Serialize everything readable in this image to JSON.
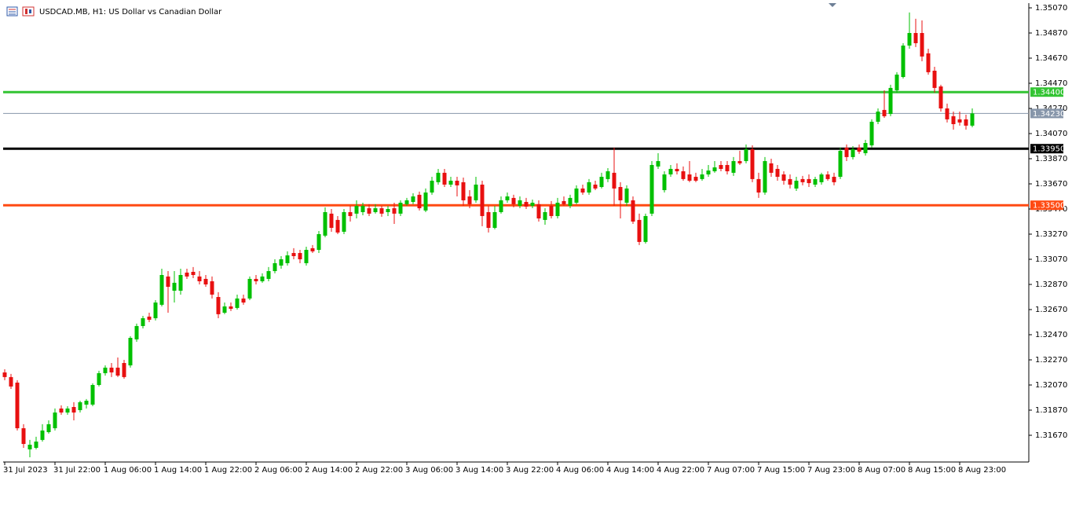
{
  "chart_data": {
    "type": "candlestick",
    "title": "USDCAD.MB, H1:  US Dollar vs Canadian Dollar",
    "categories": [
      "31 Jul 2023",
      null,
      null,
      null,
      null,
      null,
      null,
      null,
      "31 Jul 22:00",
      null,
      null,
      null,
      null,
      null,
      null,
      null,
      "1 Aug 06:00",
      null,
      null,
      null,
      null,
      null,
      null,
      null,
      "1 Aug 14:00",
      null,
      null,
      null,
      null,
      null,
      null,
      null,
      "1 Aug 22:00",
      null,
      null,
      null,
      null,
      null,
      null,
      null,
      "2 Aug 06:00",
      null,
      null,
      null,
      null,
      null,
      null,
      null,
      "2 Aug 14:00",
      null,
      null,
      null,
      null,
      null,
      null,
      null,
      "2 Aug 22:00",
      null,
      null,
      null,
      null,
      null,
      null,
      null,
      "3 Aug 06:00",
      null,
      null,
      null,
      null,
      null,
      null,
      null,
      "3 Aug 14:00",
      null,
      null,
      null,
      null,
      null,
      null,
      null,
      "3 Aug 22:00",
      null,
      null,
      null,
      null,
      null,
      null,
      null,
      "4 Aug 06:00",
      null,
      null,
      null,
      null,
      null,
      null,
      null,
      "4 Aug 14:00",
      null,
      null,
      null,
      null,
      null,
      null,
      null,
      "4 Aug 22:00",
      null,
      null,
      null,
      null,
      null,
      null,
      null,
      "7 Aug 07:00",
      null,
      null,
      null,
      null,
      null,
      null,
      null,
      "7 Aug 15:00",
      null,
      null,
      null,
      null,
      null,
      null,
      null,
      "7 Aug 23:00",
      null,
      null,
      null,
      null,
      null,
      null,
      null,
      "8 Aug 07:00",
      null,
      null,
      null,
      null,
      null,
      null,
      null,
      "8 Aug 15:00",
      null,
      null,
      null,
      null,
      null,
      null,
      null,
      "8 Aug 23:00",
      null,
      null
    ],
    "open": [
      1.3217,
      1.32133,
      1.32089,
      1.31726,
      1.31558,
      1.3157,
      1.31633,
      1.31695,
      1.31726,
      1.31883,
      1.31851,
      1.31895,
      1.3187,
      1.31914,
      1.31914,
      1.3207,
      1.32164,
      1.32208,
      1.32208,
      1.32245,
      1.32226,
      1.32433,
      1.32539,
      1.32614,
      1.32601,
      1.32708,
      1.32933,
      1.3282,
      1.3282,
      1.32964,
      1.3297,
      1.32933,
      1.32914,
      1.32895,
      1.3277,
      1.32645,
      1.32695,
      1.32683,
      1.32758,
      1.32758,
      1.32914,
      1.32895,
      1.32914,
      1.32976,
      1.3302,
      1.33039,
      1.3312,
      1.3312,
      1.33039,
      1.33158,
      1.33145,
      1.33258,
      1.33433,
      1.33383,
      1.33289,
      1.33445,
      1.33433,
      1.33445,
      1.33476,
      1.33445,
      1.33476,
      1.33445,
      1.33476,
      1.33433,
      1.33508,
      1.33526,
      1.33583,
      1.33458,
      1.33601,
      1.33683,
      1.33758,
      1.33664,
      1.33695,
      1.33683,
      1.3357,
      1.33539,
      1.33664,
      1.33445,
      1.3332,
      1.33445,
      1.33539,
      1.33558,
      1.33495,
      1.33526,
      1.33495,
      1.33508,
      1.33383,
      1.33495,
      1.33414,
      1.33533,
      1.33495,
      1.3352,
      1.33633,
      1.33601,
      1.33664,
      1.33645,
      1.33708,
      1.33758,
      1.33645,
      1.3352,
      1.33539,
      1.33383,
      1.33208,
      1.33433,
      1.33808,
      1.3362,
      1.33745,
      1.33789,
      1.3377,
      1.33745,
      1.33726,
      1.33708,
      1.33745,
      1.3377,
      1.3382,
      1.3382,
      1.33758,
      1.33851,
      1.33851,
      1.33945,
      1.33708,
      1.33601,
      1.33833,
      1.33789,
      1.33745,
      1.33708,
      1.33633,
      1.33708,
      1.33708,
      1.33664,
      1.33683,
      1.33745,
      1.33726,
      1.33726,
      1.33958,
      1.33883,
      1.33958,
      1.33914,
      1.33976,
      1.34164,
      1.34258,
      1.34226,
      1.34414,
      1.3452,
      1.3477,
      1.3487,
      1.3487,
      1.34708,
      1.3457,
      1.34445,
      1.3427,
      1.34208,
      1.34183,
      1.34183,
      1.34133
    ],
    "high": [
      1.32195,
      1.32158,
      1.32108,
      1.31758,
      1.31633,
      1.31658,
      1.31758,
      1.31789,
      1.31883,
      1.31908,
      1.31901,
      1.31933,
      1.31945,
      1.31958,
      1.32083,
      1.32183,
      1.32226,
      1.32245,
      1.32289,
      1.3227,
      1.32458,
      1.32558,
      1.3262,
      1.32645,
      1.32745,
      1.32995,
      1.32976,
      1.32976,
      1.32995,
      1.32995,
      1.33008,
      1.32976,
      1.32945,
      1.32933,
      1.32808,
      1.32726,
      1.32726,
      1.32789,
      1.32789,
      1.32933,
      1.32945,
      1.32958,
      1.33008,
      1.3307,
      1.33095,
      1.33133,
      1.33158,
      1.33145,
      1.3317,
      1.33183,
      1.33295,
      1.33483,
      1.3347,
      1.33414,
      1.3347,
      1.33495,
      1.33539,
      1.3352,
      1.33508,
      1.33508,
      1.33495,
      1.33495,
      1.3352,
      1.33539,
      1.33558,
      1.33595,
      1.33608,
      1.33633,
      1.33726,
      1.33789,
      1.33789,
      1.33726,
      1.33726,
      1.3372,
      1.3362,
      1.33726,
      1.33695,
      1.33495,
      1.33495,
      1.3357,
      1.33601,
      1.33583,
      1.3357,
      1.33558,
      1.33545,
      1.33539,
      1.33476,
      1.33533,
      1.33558,
      1.3357,
      1.33583,
      1.33658,
      1.33664,
      1.33708,
      1.33695,
      1.33758,
      1.33795,
      1.33958,
      1.33683,
      1.33658,
      1.3357,
      1.33433,
      1.33433,
      1.33851,
      1.33914,
      1.3377,
      1.3382,
      1.33833,
      1.33808,
      1.33851,
      1.33758,
      1.33789,
      1.3382,
      1.33851,
      1.33851,
      1.33851,
      1.33883,
      1.33933,
      1.33983,
      1.33976,
      1.33758,
      1.33883,
      1.3387,
      1.3382,
      1.3377,
      1.33745,
      1.33726,
      1.33733,
      1.33745,
      1.33726,
      1.33758,
      1.3377,
      1.33758,
      1.33958,
      1.33983,
      1.3397,
      1.33983,
      1.3402,
      1.34183,
      1.3427,
      1.34414,
      1.34458,
      1.34558,
      1.34789,
      1.35033,
      1.34983,
      1.3497,
      1.34745,
      1.34601,
      1.34458,
      1.34308,
      1.34245,
      1.34245,
      1.3422,
      1.3427
    ],
    "low": [
      1.32108,
      1.32039,
      1.31708,
      1.3157,
      1.31495,
      1.31558,
      1.3162,
      1.31683,
      1.31708,
      1.31833,
      1.31833,
      1.31789,
      1.31851,
      1.31883,
      1.31901,
      1.32058,
      1.32145,
      1.32133,
      1.32133,
      1.3212,
      1.32208,
      1.32414,
      1.3252,
      1.3257,
      1.32583,
      1.32695,
      1.32645,
      1.32726,
      1.32789,
      1.32914,
      1.3292,
      1.3287,
      1.32851,
      1.32758,
      1.32601,
      1.32633,
      1.32658,
      1.3267,
      1.32708,
      1.32745,
      1.3287,
      1.32883,
      1.32895,
      1.32958,
      1.32995,
      1.3302,
      1.3307,
      1.33039,
      1.3302,
      1.3312,
      1.3312,
      1.33245,
      1.33289,
      1.3327,
      1.3327,
      1.3337,
      1.33395,
      1.3342,
      1.33414,
      1.33433,
      1.33408,
      1.33414,
      1.33351,
      1.33414,
      1.33495,
      1.33508,
      1.33458,
      1.33445,
      1.33583,
      1.33664,
      1.33645,
      1.33645,
      1.3357,
      1.33495,
      1.33476,
      1.3352,
      1.33333,
      1.33283,
      1.33308,
      1.33433,
      1.3352,
      1.33483,
      1.33476,
      1.3347,
      1.33476,
      1.3337,
      1.33345,
      1.33395,
      1.33395,
      1.33495,
      1.33476,
      1.33508,
      1.33583,
      1.33583,
      1.3362,
      1.33633,
      1.33683,
      1.33495,
      1.33395,
      1.33495,
      1.33351,
      1.33183,
      1.33195,
      1.33414,
      1.33789,
      1.33601,
      1.33726,
      1.33745,
      1.33695,
      1.33683,
      1.33683,
      1.33695,
      1.33726,
      1.33758,
      1.3377,
      1.33745,
      1.33733,
      1.3382,
      1.33833,
      1.33683,
      1.33558,
      1.33583,
      1.33726,
      1.33695,
      1.33664,
      1.33633,
      1.33614,
      1.33658,
      1.33645,
      1.33645,
      1.33664,
      1.33695,
      1.33658,
      1.33708,
      1.33851,
      1.33864,
      1.33908,
      1.33895,
      1.33958,
      1.34145,
      1.34195,
      1.34208,
      1.34395,
      1.34508,
      1.34745,
      1.34758,
      1.34645,
      1.34539,
      1.34395,
      1.34245,
      1.34158,
      1.34101,
      1.34133,
      1.34101,
      1.3412
    ],
    "close": [
      1.32133,
      1.32058,
      1.31726,
      1.31601,
      1.31595,
      1.3162,
      1.31708,
      1.31758,
      1.31851,
      1.31851,
      1.31883,
      1.31851,
      1.31933,
      1.31945,
      1.3207,
      1.32164,
      1.32208,
      1.3217,
      1.32145,
      1.32133,
      1.32445,
      1.32539,
      1.32601,
      1.32589,
      1.32726,
      1.32945,
      1.32851,
      1.32883,
      1.32945,
      1.32933,
      1.32945,
      1.32895,
      1.3287,
      1.32789,
      1.32633,
      1.32695,
      1.32676,
      1.32758,
      1.32726,
      1.32914,
      1.32895,
      1.32933,
      1.32976,
      1.33039,
      1.3307,
      1.33101,
      1.33095,
      1.3307,
      1.33145,
      1.33133,
      1.3327,
      1.33445,
      1.3332,
      1.33283,
      1.33445,
      1.33414,
      1.33495,
      1.33495,
      1.33433,
      1.33476,
      1.33433,
      1.3347,
      1.33433,
      1.3352,
      1.33539,
      1.3357,
      1.33476,
      1.33601,
      1.33695,
      1.33758,
      1.33664,
      1.33695,
      1.33658,
      1.33539,
      1.33508,
      1.33664,
      1.33414,
      1.3332,
      1.33445,
      1.33539,
      1.3357,
      1.33508,
      1.33539,
      1.33489,
      1.3352,
      1.33395,
      1.33445,
      1.33414,
      1.3352,
      1.33508,
      1.33558,
      1.33633,
      1.33601,
      1.33683,
      1.33633,
      1.33726,
      1.3377,
      1.33633,
      1.33539,
      1.33633,
      1.3337,
      1.33208,
      1.33414,
      1.3382,
      1.33851,
      1.33745,
      1.33789,
      1.3377,
      1.33708,
      1.33695,
      1.33695,
      1.33745,
      1.33776,
      1.33801,
      1.33789,
      1.3377,
      1.33851,
      1.33833,
      1.33945,
      1.33708,
      1.33601,
      1.33851,
      1.33758,
      1.33726,
      1.33695,
      1.33664,
      1.33695,
      1.33683,
      1.33676,
      1.33708,
      1.33745,
      1.33708,
      1.33683,
      1.33933,
      1.33883,
      1.33945,
      1.33926,
      1.33995,
      1.34164,
      1.34245,
      1.34208,
      1.34433,
      1.34539,
      1.3477,
      1.3487,
      1.34789,
      1.34683,
      1.34558,
      1.34433,
      1.3427,
      1.34183,
      1.34145,
      1.34158,
      1.34133,
      1.3423
    ],
    "up_color": "#00c000",
    "down_color": "#e81010",
    "ylim": [
      1.314575,
      1.351075
    ],
    "yticks": [
      {
        "value": 1.3507,
        "label": "1.35070"
      },
      {
        "value": 1.3487,
        "label": "1.34870"
      },
      {
        "value": 1.3467,
        "label": "1.34670"
      },
      {
        "value": 1.3447,
        "label": "1.34470"
      },
      {
        "value": 1.3427,
        "label": "1.34270"
      },
      {
        "value": 1.3407,
        "label": "1.34070"
      },
      {
        "value": 1.3387,
        "label": "1.33870"
      },
      {
        "value": 1.3367,
        "label": "1.33670"
      },
      {
        "value": 1.3347,
        "label": "1.33470"
      },
      {
        "value": 1.3327,
        "label": "1.33270"
      },
      {
        "value": 1.3307,
        "label": "1.33070"
      },
      {
        "value": 1.3287,
        "label": "1.32870"
      },
      {
        "value": 1.3267,
        "label": "1.32670"
      },
      {
        "value": 1.3247,
        "label": "1.32470"
      },
      {
        "value": 1.3227,
        "label": "1.32270"
      },
      {
        "value": 1.3207,
        "label": "1.32070"
      },
      {
        "value": 1.3187,
        "label": "1.31870"
      },
      {
        "value": 1.3167,
        "label": "1.31670"
      }
    ],
    "levels": [
      {
        "value": 1.344,
        "label": "1.34400",
        "color": "#33c433"
      },
      {
        "value": 1.3395,
        "label": "1.33950",
        "color": "#000000"
      },
      {
        "value": 1.335,
        "label": "1.33500",
        "color": "#ff4a12"
      }
    ],
    "bid": {
      "value": 1.3423,
      "label": "1.34230",
      "color": "#8796aa"
    }
  }
}
